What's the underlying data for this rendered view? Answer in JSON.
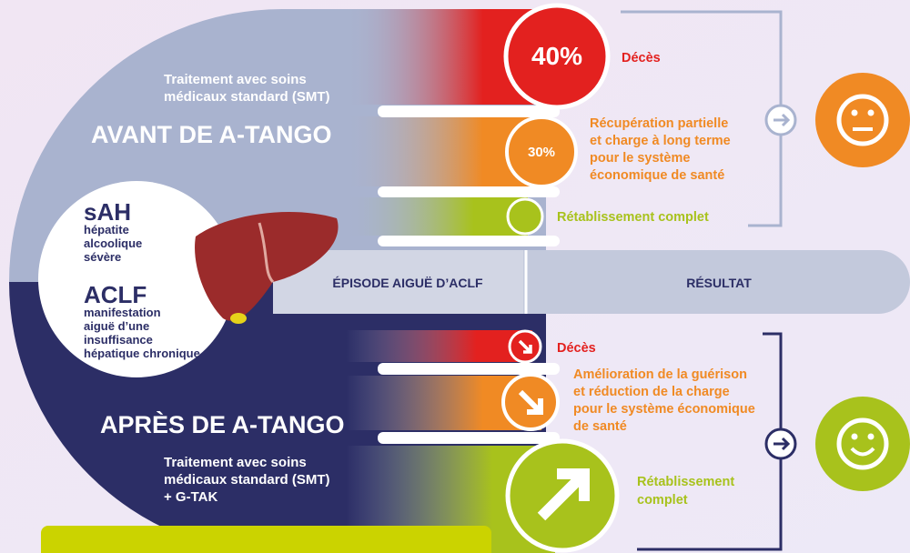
{
  "before": {
    "treatment": [
      "Traitement avec soins",
      "médicaux standard (SMT)"
    ],
    "title": "AVANT DE A-TANGO",
    "outcomes": [
      {
        "value": "40%",
        "label": [
          "Décès"
        ]
      },
      {
        "value": "30%",
        "label": [
          "Récupération partielle",
          "et charge à long terme",
          "pour le système",
          "économique de santé"
        ]
      },
      {
        "label": [
          "Rétablissement complet"
        ]
      }
    ]
  },
  "center": {
    "sah": "sAH",
    "sah_desc": [
      "hépatite",
      "alcoolique",
      "sévère"
    ],
    "aclf": "ACLF",
    "aclf_desc": [
      "manifestation",
      "aiguë d’une",
      "insuffisance",
      "hépatique chronique"
    ]
  },
  "band": {
    "episode": "ÉPISODE AIGUË D’ACLF",
    "result": "RÉSULTAT"
  },
  "after": {
    "title": "APRÈS DE A-TANGO",
    "treatment": [
      "Traitement avec soins",
      "médicaux standard (SMT)",
      "+ G-TAK"
    ],
    "outcomes": [
      {
        "label": [
          "Décès"
        ]
      },
      {
        "label": [
          "Amélioration de la guérison",
          "et réduction de la charge",
          "pour le système économique",
          "de santé"
        ]
      },
      {
        "label": [
          "Rétablissement",
          "complet"
        ]
      }
    ]
  }
}
